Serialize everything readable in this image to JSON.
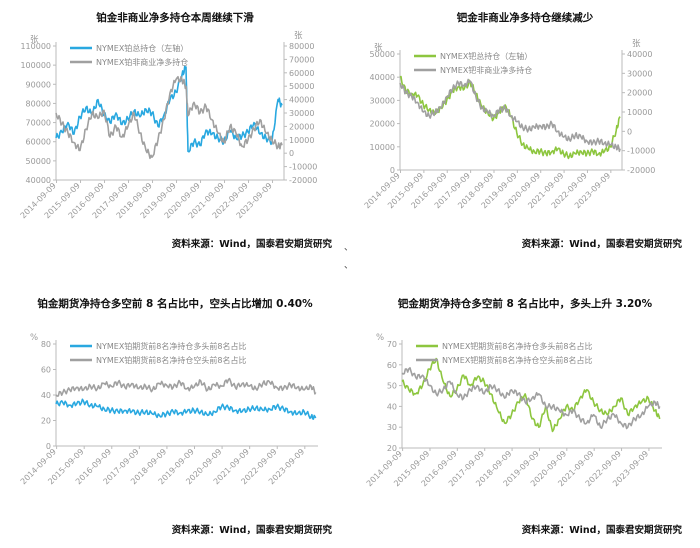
{
  "chart_data": [
    {
      "id": "c1",
      "type": "line",
      "title": "铂金非商业净多持仓本周继续下滑",
      "source": "资料来源：Wind，国泰君安期货研究",
      "left_unit": "张",
      "right_unit": "张",
      "ylim_left": [
        40000,
        110000
      ],
      "yticks_left": [
        "40000",
        "50000",
        "60000",
        "70000",
        "80000",
        "90000",
        "100000",
        "110000"
      ],
      "ylim_right": [
        -20000,
        80000
      ],
      "yticks_right": [
        "-20000",
        "-10000",
        "0",
        "10000",
        "20000",
        "30000",
        "40000",
        "50000",
        "60000",
        "70000",
        "80000"
      ],
      "xlim": [
        "2014-09",
        "2024-03"
      ],
      "xticks": [
        "2014-09-09",
        "2015-09-09",
        "2016-09-09",
        "2017-09-09",
        "2018-09-09",
        "2019-09-09",
        "2020-09-09",
        "2021-09-09",
        "2022-09-09",
        "2023-09-09"
      ],
      "legend_position": "top-left",
      "grid": false,
      "series": [
        {
          "name": "NYMEX铂总持仓（左轴）",
          "axis": "left",
          "color": "#29a8e0",
          "x": [
            "2014-09",
            "2014-12",
            "2015-03",
            "2015-06",
            "2015-09",
            "2015-12",
            "2016-03",
            "2016-06",
            "2016-09",
            "2016-12",
            "2017-03",
            "2017-06",
            "2017-09",
            "2017-12",
            "2018-03",
            "2018-06",
            "2018-09",
            "2018-12",
            "2019-03",
            "2019-06",
            "2019-09",
            "2019-12",
            "2020-02",
            "2020-03",
            "2020-06",
            "2020-09",
            "2020-12",
            "2021-03",
            "2021-06",
            "2021-09",
            "2021-12",
            "2022-03",
            "2022-06",
            "2022-09",
            "2022-12",
            "2023-03",
            "2023-06",
            "2023-09",
            "2023-12",
            "2024-02"
          ],
          "values": [
            62000,
            65000,
            70000,
            64000,
            73000,
            78000,
            74000,
            82000,
            74000,
            70000,
            75000,
            69000,
            72000,
            76000,
            73000,
            77000,
            75000,
            68000,
            74000,
            82000,
            86000,
            95000,
            99000,
            55000,
            60000,
            58000,
            66000,
            64000,
            62000,
            60000,
            66000,
            62000,
            63000,
            65000,
            70000,
            64000,
            62000,
            60000,
            82000,
            79000
          ]
        },
        {
          "name": "NYMEX铂非商业净多持仓",
          "axis": "right",
          "color": "#a0a0a0",
          "x": [
            "2014-09",
            "2014-12",
            "2015-03",
            "2015-06",
            "2015-09",
            "2015-12",
            "2016-03",
            "2016-06",
            "2016-09",
            "2016-12",
            "2017-03",
            "2017-06",
            "2017-09",
            "2017-12",
            "2018-03",
            "2018-06",
            "2018-09",
            "2018-12",
            "2019-03",
            "2019-06",
            "2019-09",
            "2019-12",
            "2020-02",
            "2020-03",
            "2020-06",
            "2020-09",
            "2020-12",
            "2021-03",
            "2021-06",
            "2021-09",
            "2021-12",
            "2022-03",
            "2022-06",
            "2022-09",
            "2022-12",
            "2023-03",
            "2023-06",
            "2023-09",
            "2023-12",
            "2024-02"
          ],
          "values": [
            30000,
            22000,
            15000,
            8000,
            2000,
            18000,
            30000,
            26000,
            32000,
            12000,
            20000,
            12000,
            20000,
            30000,
            15000,
            2000,
            -3000,
            10000,
            25000,
            45000,
            55000,
            55000,
            50000,
            28000,
            38000,
            30000,
            35000,
            25000,
            15000,
            8000,
            20000,
            15000,
            5000,
            10000,
            18000,
            25000,
            15000,
            10000,
            5000,
            6000
          ]
        }
      ]
    },
    {
      "id": "c2",
      "type": "line",
      "title": "钯金非商业净多持仓继续减少",
      "source": "资料来源：Wind，国泰君安期货研究",
      "left_unit": "张",
      "right_unit": "张",
      "ylim_left": [
        0,
        50000
      ],
      "yticks_left": [
        "0",
        "10000",
        "20000",
        "30000",
        "40000",
        "50000"
      ],
      "ylim_right": [
        -20000,
        40000
      ],
      "yticks_right": [
        "-20000",
        "-10000",
        "0",
        "10000",
        "20000",
        "30000",
        "40000"
      ],
      "xlim": [
        "2014-09",
        "2024-03"
      ],
      "xticks": [
        "2014-09-09",
        "2015-09-09",
        "2016-09-09",
        "2017-09-09",
        "2018-09-09",
        "2019-09-09",
        "2020-09-09",
        "2021-09-09",
        "2022-09-09",
        "2023-09-09"
      ],
      "legend_position": "top-left",
      "grid": false,
      "series": [
        {
          "name": "NYMEX钯总持仓（左轴）",
          "axis": "left",
          "color": "#8dc63f",
          "x": [
            "2014-09",
            "2014-12",
            "2015-03",
            "2015-06",
            "2015-09",
            "2015-12",
            "2016-03",
            "2016-06",
            "2016-09",
            "2016-12",
            "2017-03",
            "2017-06",
            "2017-09",
            "2017-12",
            "2018-03",
            "2018-06",
            "2018-09",
            "2018-12",
            "2019-03",
            "2019-06",
            "2019-09",
            "2019-12",
            "2020-03",
            "2020-06",
            "2020-09",
            "2020-12",
            "2021-03",
            "2021-06",
            "2021-09",
            "2021-12",
            "2022-03",
            "2022-06",
            "2022-09",
            "2022-12",
            "2023-03",
            "2023-06",
            "2023-09",
            "2023-12",
            "2024-02"
          ],
          "values": [
            40000,
            34000,
            33000,
            32000,
            28000,
            26000,
            24000,
            27000,
            30000,
            34000,
            36000,
            35000,
            38000,
            33000,
            27000,
            25000,
            22000,
            25000,
            28000,
            23000,
            16000,
            11000,
            9000,
            8000,
            8000,
            7000,
            8000,
            9000,
            7000,
            6000,
            7000,
            8000,
            7000,
            8000,
            7000,
            8000,
            10000,
            17000,
            23000
          ]
        },
        {
          "name": "NYMEX钯非商业净多持仓",
          "axis": "right",
          "color": "#a0a0a0",
          "x": [
            "2014-09",
            "2014-12",
            "2015-03",
            "2015-06",
            "2015-09",
            "2015-12",
            "2016-03",
            "2016-06",
            "2016-09",
            "2016-12",
            "2017-03",
            "2017-06",
            "2017-09",
            "2017-12",
            "2018-03",
            "2018-06",
            "2018-09",
            "2018-12",
            "2019-03",
            "2019-06",
            "2019-09",
            "2019-12",
            "2020-03",
            "2020-06",
            "2020-09",
            "2020-12",
            "2021-03",
            "2021-06",
            "2021-09",
            "2021-12",
            "2022-03",
            "2022-06",
            "2022-09",
            "2022-12",
            "2023-03",
            "2023-06",
            "2023-09",
            "2023-12",
            "2024-02"
          ],
          "values": [
            25000,
            20000,
            18000,
            15000,
            10000,
            8000,
            10000,
            12000,
            18000,
            22000,
            25000,
            24000,
            26000,
            18000,
            12000,
            10000,
            8000,
            11000,
            12000,
            8000,
            5000,
            2000,
            1000,
            2000,
            3000,
            2000,
            4000,
            0,
            -3000,
            -4000,
            -2000,
            -3000,
            -5000,
            -6000,
            -5000,
            -6000,
            -7000,
            -8000,
            -9000
          ]
        }
      ]
    },
    {
      "id": "c3",
      "type": "line",
      "title": "铂金期货净持仓多空前 8 名占比中，空头占比增加 0.40%",
      "source": "资料来源：Wind，国泰君安期货研究",
      "left_unit": "%",
      "ylim": [
        0,
        80
      ],
      "yticks": [
        "0",
        "20",
        "40",
        "60",
        "80"
      ],
      "xlim": [
        "2014-09",
        "2024-03"
      ],
      "xticks": [
        "2014-09-09",
        "2015-09-09",
        "2016-09-09",
        "2017-09-09",
        "2018-09-09",
        "2019-09-09",
        "2020-09-09",
        "2021-09-09",
        "2022-09-09",
        "2023-09-09"
      ],
      "legend_position": "top-left",
      "grid": false,
      "series": [
        {
          "name": "NYMEX铂期货前8名净持仓多头前8名占比",
          "color": "#29a8e0",
          "x": [
            "2014-09",
            "2014-12",
            "2015-03",
            "2015-06",
            "2015-09",
            "2015-12",
            "2016-03",
            "2016-06",
            "2016-09",
            "2016-12",
            "2017-03",
            "2017-06",
            "2017-09",
            "2017-12",
            "2018-03",
            "2018-06",
            "2018-09",
            "2018-12",
            "2019-03",
            "2019-06",
            "2019-09",
            "2019-12",
            "2020-03",
            "2020-06",
            "2020-09",
            "2020-12",
            "2021-03",
            "2021-06",
            "2021-09",
            "2021-12",
            "2022-03",
            "2022-06",
            "2022-09",
            "2022-12",
            "2023-03",
            "2023-06",
            "2023-09",
            "2023-12",
            "2024-02"
          ],
          "values": [
            33,
            34,
            32,
            33,
            35,
            32,
            31,
            29,
            28,
            27,
            28,
            27,
            26,
            27,
            25,
            24,
            25,
            27,
            26,
            27,
            28,
            27,
            24,
            27,
            31,
            30,
            28,
            27,
            29,
            30,
            28,
            29,
            31,
            29,
            27,
            25,
            27,
            23,
            22
          ]
        },
        {
          "name": "NYMEX铂期货前8名净持仓空头前8名占比",
          "color": "#a0a0a0",
          "x": [
            "2014-09",
            "2014-12",
            "2015-03",
            "2015-06",
            "2015-09",
            "2015-12",
            "2016-03",
            "2016-06",
            "2016-09",
            "2016-12",
            "2017-03",
            "2017-06",
            "2017-09",
            "2017-12",
            "2018-03",
            "2018-06",
            "2018-09",
            "2018-12",
            "2019-03",
            "2019-06",
            "2019-09",
            "2019-12",
            "2020-03",
            "2020-06",
            "2020-09",
            "2020-12",
            "2021-03",
            "2021-06",
            "2021-09",
            "2021-12",
            "2022-03",
            "2022-06",
            "2022-09",
            "2022-12",
            "2023-03",
            "2023-06",
            "2023-09",
            "2023-12",
            "2024-02"
          ],
          "values": [
            40,
            42,
            44,
            46,
            44,
            47,
            45,
            49,
            47,
            50,
            46,
            49,
            45,
            47,
            44,
            49,
            48,
            46,
            50,
            45,
            46,
            51,
            44,
            48,
            47,
            52,
            46,
            49,
            47,
            45,
            49,
            50,
            46,
            45,
            48,
            46,
            44,
            47,
            42
          ]
        }
      ]
    },
    {
      "id": "c4",
      "type": "line",
      "title": "钯金期货净持仓多空前 8 名占比中，多头上升 3.20%",
      "source": "资料来源：Wind，国泰君安期货研究",
      "left_unit": "%",
      "ylim": [
        20,
        70
      ],
      "yticks": [
        "20",
        "30",
        "40",
        "50",
        "60",
        "70"
      ],
      "xlim": [
        "2014-09",
        "2024-03"
      ],
      "xticks": [
        "2014-09-09",
        "2015-09-09",
        "2016-09-09",
        "2017-09-09",
        "2018-09-09",
        "2019-09-09",
        "2020-09-09",
        "2021-09-09",
        "2022-09-09",
        "2023-09-09"
      ],
      "legend_position": "top-left",
      "grid": false,
      "series": [
        {
          "name": "NYMEX钯期货前8名净持仓多头前8名占比",
          "color": "#8dc63f",
          "x": [
            "2014-09",
            "2014-12",
            "2015-03",
            "2015-06",
            "2015-09",
            "2015-12",
            "2016-03",
            "2016-06",
            "2016-09",
            "2016-12",
            "2017-03",
            "2017-06",
            "2017-09",
            "2017-12",
            "2018-03",
            "2018-06",
            "2018-09",
            "2018-12",
            "2019-03",
            "2019-06",
            "2019-09",
            "2019-12",
            "2020-03",
            "2020-06",
            "2020-09",
            "2020-12",
            "2021-03",
            "2021-06",
            "2021-09",
            "2021-12",
            "2022-03",
            "2022-06",
            "2022-09",
            "2022-12",
            "2023-03",
            "2023-06",
            "2023-09",
            "2023-12",
            "2024-02"
          ],
          "values": [
            52,
            48,
            46,
            50,
            58,
            63,
            52,
            45,
            48,
            55,
            50,
            54,
            52,
            46,
            38,
            32,
            36,
            42,
            46,
            34,
            30,
            40,
            28,
            34,
            40,
            38,
            44,
            48,
            42,
            38,
            36,
            40,
            44,
            36,
            40,
            42,
            44,
            38,
            34
          ]
        },
        {
          "name": "NYMEX钯期货前8名净持仓空头前8名占比",
          "color": "#a0a0a0",
          "x": [
            "2014-09",
            "2014-12",
            "2015-03",
            "2015-06",
            "2015-09",
            "2015-12",
            "2016-03",
            "2016-06",
            "2016-09",
            "2016-12",
            "2017-03",
            "2017-06",
            "2017-09",
            "2017-12",
            "2018-03",
            "2018-06",
            "2018-09",
            "2018-12",
            "2019-03",
            "2019-06",
            "2019-09",
            "2019-12",
            "2020-03",
            "2020-06",
            "2020-09",
            "2020-12",
            "2021-03",
            "2021-06",
            "2021-09",
            "2021-12",
            "2022-03",
            "2022-06",
            "2022-09",
            "2022-12",
            "2023-03",
            "2023-06",
            "2023-09",
            "2023-12",
            "2024-02"
          ],
          "values": [
            56,
            58,
            54,
            55,
            50,
            46,
            48,
            52,
            46,
            44,
            48,
            50,
            46,
            50,
            48,
            44,
            48,
            46,
            42,
            44,
            46,
            40,
            40,
            38,
            36,
            38,
            34,
            32,
            36,
            30,
            34,
            36,
            32,
            30,
            34,
            36,
            40,
            42,
            40
          ]
        }
      ]
    }
  ],
  "stray_marks": [
    "、",
    "、"
  ]
}
